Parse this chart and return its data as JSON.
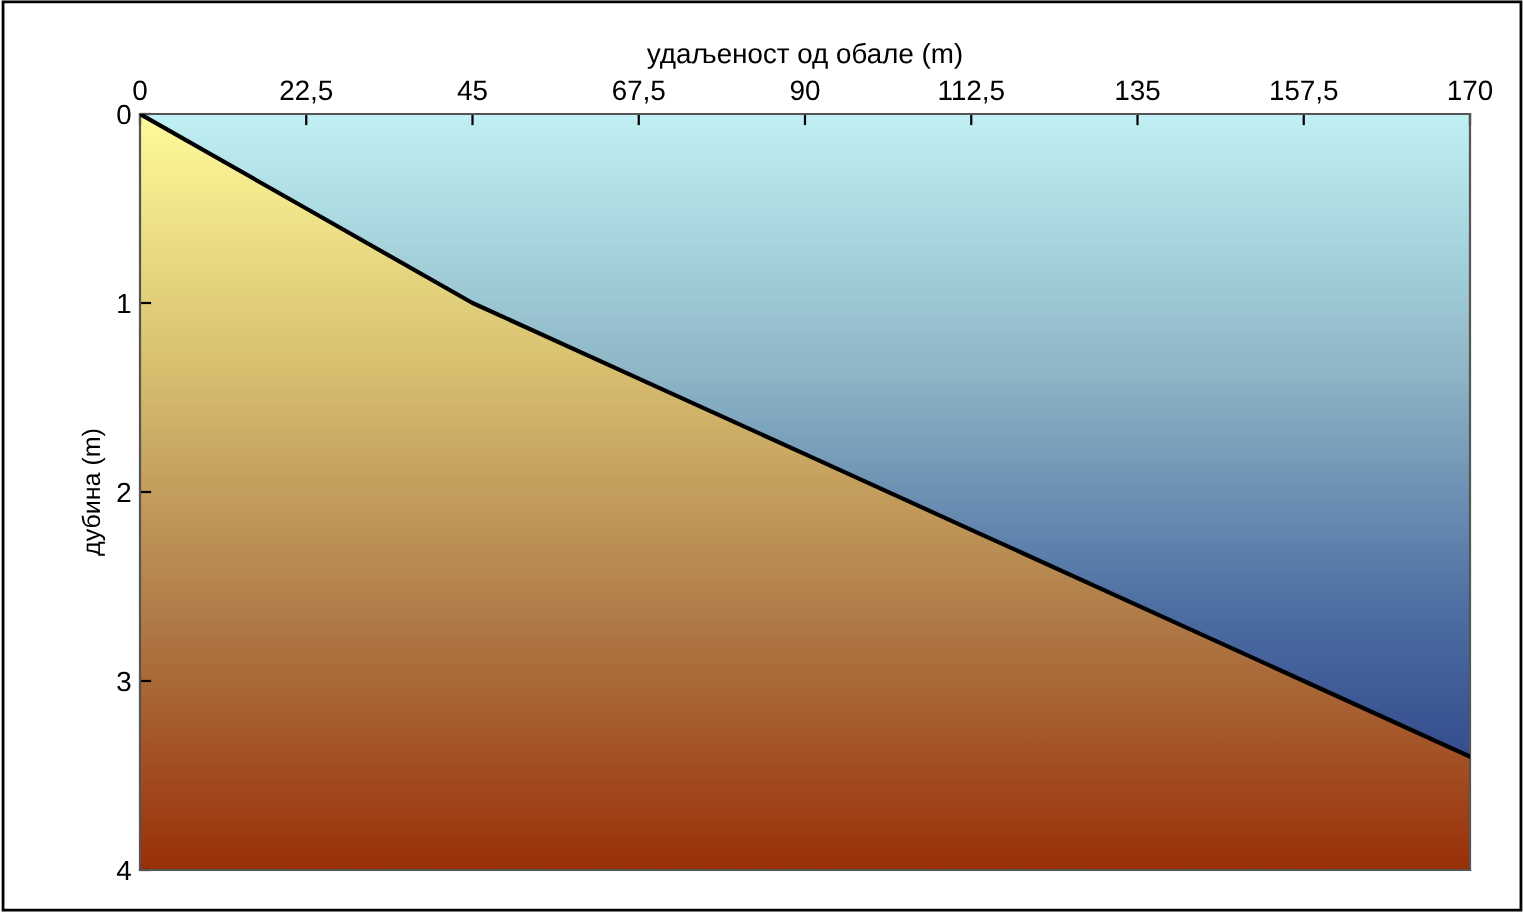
{
  "chart_data": {
    "type": "area",
    "xlabel": "удаљеност од обале (m)",
    "ylabel": "дубина (m)",
    "categories": [
      "0",
      "22,5",
      "45",
      "67,5",
      "90",
      "112,5",
      "135",
      "157,5",
      "170"
    ],
    "series": [
      {
        "color": "#000000",
        "values": [
          0,
          0.5,
          1,
          1.4,
          1.8,
          2.2,
          2.6,
          3.0,
          3.4
        ]
      }
    ],
    "ylim": [
      4,
      0
    ],
    "yticks": [
      0,
      1,
      2,
      3,
      4
    ],
    "grid": false,
    "legend": false
  }
}
